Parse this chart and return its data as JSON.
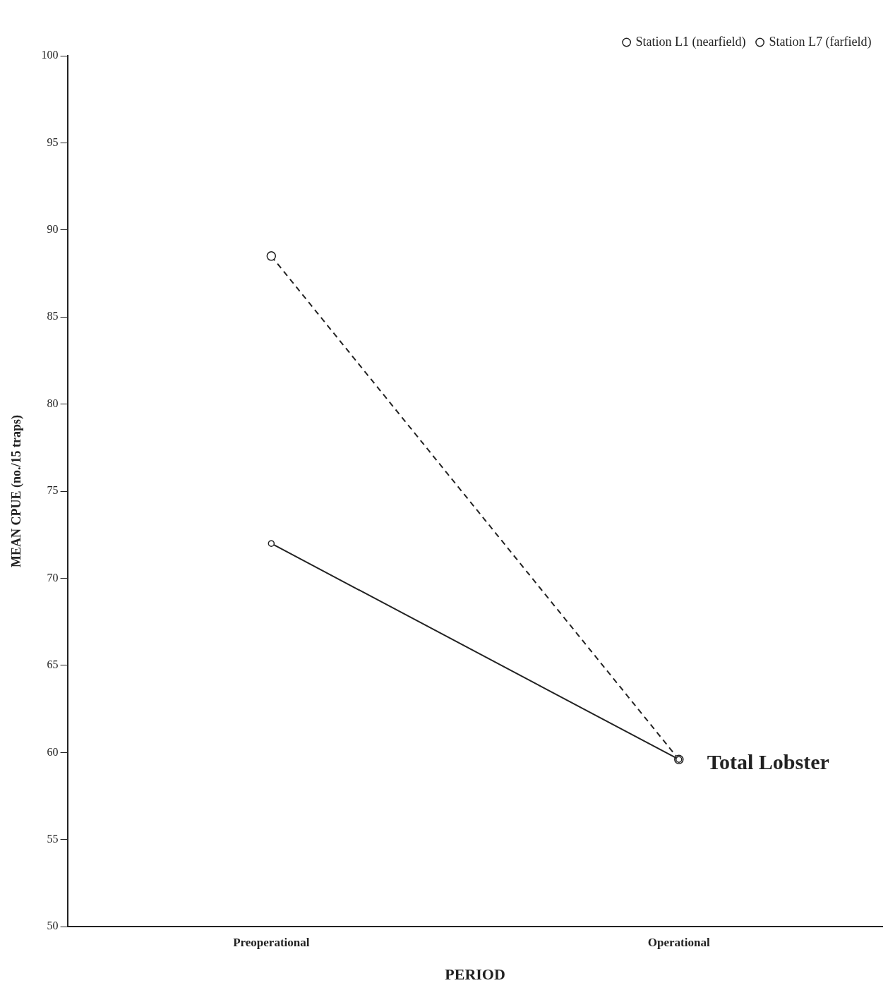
{
  "chart_data": {
    "type": "line",
    "xlabel": "PERIOD",
    "ylabel": "MEAN CPUE (no./15 traps)",
    "categories": [
      "Preoperational",
      "Operational"
    ],
    "series": [
      {
        "name": "Station L1 (nearfield)",
        "color": "#222222",
        "values": [
          72,
          59.6
        ],
        "line_style": "solid"
      },
      {
        "name": "Station L7 (farfield)",
        "color": "#222222",
        "values": [
          88.5,
          59.6
        ],
        "line_style": "dashed"
      }
    ],
    "ylim": [
      50,
      100
    ],
    "yticks": [
      50,
      55,
      60,
      65,
      70,
      75,
      80,
      85,
      90,
      95,
      100
    ],
    "grid": false,
    "legend": "top right",
    "marker": "circle",
    "annotations": [
      {
        "text": "Total Lobster",
        "x": "Operational",
        "y": 59.6
      }
    ]
  }
}
